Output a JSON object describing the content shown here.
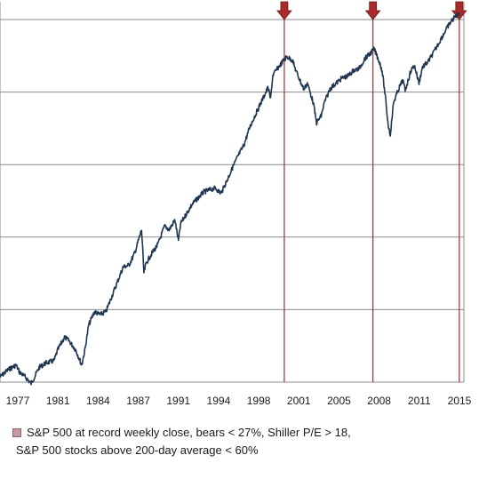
{
  "chart_data": {
    "type": "line",
    "title": "",
    "xlabel": "",
    "ylabel": "",
    "y_scale": "log",
    "y_tick_labels": [],
    "grid": "horizontal",
    "x_ticks": [
      "1977",
      "1981",
      "1984",
      "1987",
      "1991",
      "1994",
      "1998",
      "2001",
      "2005",
      "2008",
      "2011",
      "2015"
    ],
    "xlim": [
      1975.3,
      2015.6
    ],
    "ylim": [
      90,
      2300
    ],
    "colors": {
      "line": "#1f3550",
      "marker": "#a82a2a",
      "grid": "#8c8c8c"
    },
    "series": [
      {
        "x": [
          1975.3,
          1976.0,
          1976.7,
          1977.0,
          1977.5,
          1978.0,
          1978.3,
          1978.7,
          1979.3,
          1980.0,
          1980.3,
          1980.9,
          1981.3,
          1981.9,
          1982.4,
          1982.7,
          1983.0,
          1983.5,
          1984.0,
          1984.5,
          1985.0,
          1986.0,
          1986.5,
          1987.0,
          1987.6,
          1987.8,
          1988.0,
          1988.5,
          1989.0,
          1989.6,
          1990.0,
          1990.5,
          1990.8,
          1991.0,
          1992.0,
          1993.0,
          1994.0,
          1994.5,
          1995.0,
          1995.5,
          1996.0,
          1996.5,
          1997.0,
          1997.6,
          1998.0,
          1998.6,
          1998.8,
          1999.0,
          1999.5,
          2000.2,
          2000.7,
          2001.0,
          2001.7,
          2002.0,
          2002.5,
          2002.8,
          2003.2,
          2003.5,
          2004.0,
          2005.0,
          2005.5,
          2006.0,
          2006.5,
          2007.0,
          2007.4,
          2007.8,
          2008.2,
          2008.5,
          2008.8,
          2009.0,
          2009.2,
          2009.5,
          2010.0,
          2010.3,
          2010.5,
          2011.0,
          2011.3,
          2011.7,
          2012.0,
          2012.5,
          2013.0,
          2014.0,
          2014.5,
          2015.2
        ],
        "values": [
          94,
          100,
          104,
          98,
          94,
          89,
          94,
          102,
          106,
          108,
          118,
          132,
          128,
          118,
          104,
          120,
          146,
          164,
          160,
          164,
          186,
          240,
          244,
          270,
          330,
          228,
          248,
          270,
          290,
          340,
          330,
          358,
          300,
          348,
          410,
          455,
          470,
          450,
          500,
          560,
          620,
          680,
          790,
          900,
          980,
          1110,
          1000,
          1230,
          1320,
          1440,
          1400,
          1280,
          1090,
          1150,
          980,
          820,
          870,
          980,
          1100,
          1200,
          1220,
          1280,
          1300,
          1420,
          1470,
          1540,
          1400,
          1280,
          1000,
          820,
          740,
          980,
          1110,
          1180,
          1080,
          1280,
          1340,
          1150,
          1320,
          1380,
          1500,
          1800,
          1950,
          2100
        ]
      }
    ],
    "record_markers": [
      2000.0,
      2007.7,
      2015.2
    ],
    "legend": {
      "line1": "S&P 500 at record weekly close, bears < 27%, Shiller P/E > 18,",
      "line2": "S&P 500 stocks above 200-day average < 60%"
    }
  }
}
